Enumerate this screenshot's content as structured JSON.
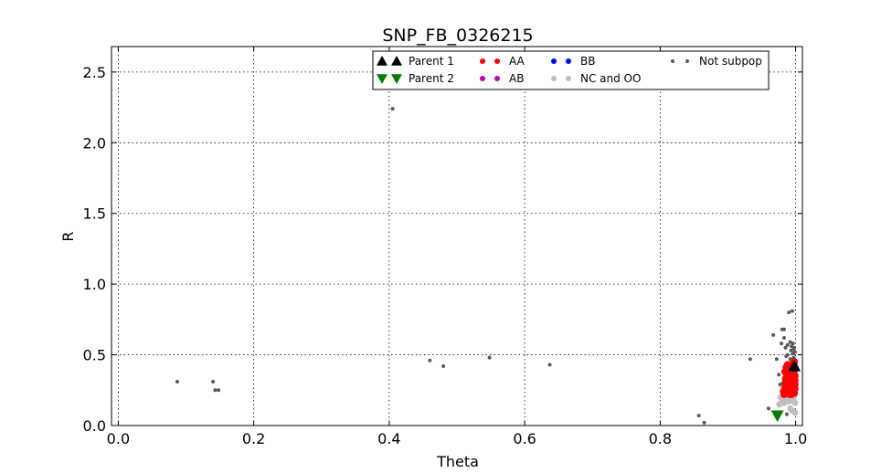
{
  "chart_data": {
    "type": "scatter",
    "title": "SNP_FB_0326215",
    "xlabel": "Theta",
    "ylabel": "R",
    "xlim": [
      -0.01,
      1.01
    ],
    "ylim": [
      0,
      2.68
    ],
    "xticks": [
      0.0,
      0.2,
      0.4,
      0.6,
      0.8,
      1.0
    ],
    "xtick_labels": [
      "0.0",
      "0.2",
      "0.4",
      "0.6",
      "0.8",
      "1.0"
    ],
    "yticks": [
      0.0,
      0.5,
      1.0,
      1.5,
      2.0,
      2.5
    ],
    "ytick_labels": [
      "0.0",
      "0.5",
      "1.0",
      "1.5",
      "2.0",
      "2.5"
    ],
    "grid": true,
    "legend_position": "top-right",
    "series": [
      {
        "name": "Parent 1",
        "color": "#000000",
        "marker": "triangle-up",
        "points": [
          [
            0.998,
            0.42
          ]
        ]
      },
      {
        "name": "Parent 2",
        "color": "#007f00",
        "marker": "triangle-down",
        "points": [
          [
            0.973,
            0.07
          ]
        ]
      },
      {
        "name": "AA",
        "color": "#ff0000",
        "marker": "circle",
        "points": [
          [
            0.982,
            0.24
          ],
          [
            0.984,
            0.27
          ],
          [
            0.986,
            0.3
          ],
          [
            0.985,
            0.33
          ],
          [
            0.988,
            0.26
          ],
          [
            0.99,
            0.29
          ],
          [
            0.989,
            0.32
          ],
          [
            0.991,
            0.35
          ],
          [
            0.992,
            0.25
          ],
          [
            0.993,
            0.28
          ],
          [
            0.994,
            0.31
          ],
          [
            0.993,
            0.34
          ],
          [
            0.995,
            0.37
          ],
          [
            0.996,
            0.24
          ],
          [
            0.996,
            0.27
          ],
          [
            0.997,
            0.3
          ],
          [
            0.997,
            0.33
          ],
          [
            0.998,
            0.36
          ],
          [
            0.998,
            0.39
          ],
          [
            0.999,
            0.26
          ],
          [
            0.999,
            0.29
          ],
          [
            0.999,
            0.32
          ],
          [
            0.999,
            0.35
          ],
          [
            0.987,
            0.36
          ],
          [
            0.984,
            0.38
          ],
          [
            0.99,
            0.4
          ],
          [
            0.994,
            0.42
          ],
          [
            0.996,
            0.44
          ],
          [
            0.998,
            0.23
          ],
          [
            0.983,
            0.22
          ],
          [
            0.989,
            0.23
          ],
          [
            0.992,
            0.38
          ],
          [
            0.995,
            0.4
          ],
          [
            0.997,
            0.42
          ],
          [
            0.986,
            0.41
          ],
          [
            0.991,
            0.22
          ],
          [
            0.999,
            0.41
          ],
          [
            0.998,
            0.45
          ],
          [
            0.988,
            0.43
          ],
          [
            0.994,
            0.22
          ]
        ]
      },
      {
        "name": "AB",
        "color": "#bf00bf",
        "marker": "circle",
        "points": []
      },
      {
        "name": "BB",
        "color": "#0000ff",
        "marker": "circle",
        "points": []
      },
      {
        "name": "NC and OO",
        "color": "#bfbfbf",
        "marker": "circle",
        "points": [
          [
            0.978,
            0.2
          ],
          [
            0.981,
            0.18
          ],
          [
            0.985,
            0.21
          ],
          [
            0.988,
            0.19
          ],
          [
            0.99,
            0.17
          ],
          [
            0.993,
            0.2
          ],
          [
            0.996,
            0.18
          ],
          [
            0.998,
            0.21
          ],
          [
            0.999,
            0.16
          ],
          [
            0.997,
            0.1
          ],
          [
            0.992,
            0.12
          ],
          [
            0.976,
            0.15
          ],
          [
            0.983,
            0.16
          ],
          [
            0.999,
            0.09
          ],
          [
            0.995,
            0.22
          ]
        ]
      },
      {
        "name": "Not subpop",
        "color": "#595959",
        "marker": "circle",
        "points": [
          [
            0.087,
            0.31
          ],
          [
            0.14,
            0.31
          ],
          [
            0.143,
            0.25
          ],
          [
            0.148,
            0.25
          ],
          [
            0.405,
            2.24
          ],
          [
            0.46,
            0.46
          ],
          [
            0.48,
            0.42
          ],
          [
            0.548,
            0.48
          ],
          [
            0.637,
            0.43
          ],
          [
            0.857,
            0.07
          ],
          [
            0.865,
            0.02
          ],
          [
            0.933,
            0.47
          ],
          [
            0.96,
            0.12
          ],
          [
            0.967,
            0.64
          ],
          [
            0.972,
            0.47
          ],
          [
            0.975,
            0.36
          ],
          [
            0.977,
            0.29
          ],
          [
            0.979,
            0.58
          ],
          [
            0.98,
            0.68
          ],
          [
            0.983,
            0.68
          ],
          [
            0.983,
            0.62
          ],
          [
            0.985,
            0.55
          ],
          [
            0.987,
            0.08
          ],
          [
            0.988,
            0.5
          ],
          [
            0.99,
            0.8
          ],
          [
            0.992,
            0.59
          ],
          [
            0.993,
            0.53
          ],
          [
            0.994,
            0.56
          ],
          [
            0.995,
            0.81
          ],
          [
            0.996,
            0.51
          ],
          [
            0.997,
            0.48
          ],
          [
            0.998,
            0.55
          ],
          [
            0.999,
            0.52
          ],
          [
            0.992,
            0.47
          ],
          [
            0.996,
            0.58
          ],
          [
            0.99,
            0.44
          ],
          [
            0.994,
            0.1
          ],
          [
            0.988,
            0.57
          ],
          [
            0.998,
            0.47
          ],
          [
            0.986,
            0.49
          ],
          [
            0.997,
            0.54
          ],
          [
            0.984,
            0.26
          ],
          [
            0.981,
            0.3
          ]
        ]
      }
    ]
  }
}
